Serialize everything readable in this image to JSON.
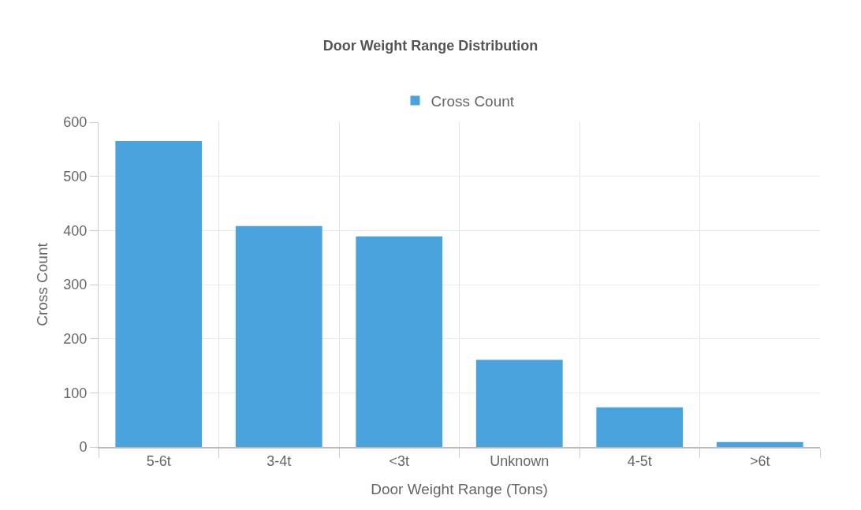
{
  "chart_data": {
    "type": "bar",
    "title": "Door Weight Range Distribution",
    "xlabel": "Door Weight Range (Tons)",
    "ylabel": "Cross Count",
    "categories": [
      "5-6t",
      "3-4t",
      "<3t",
      "Unknown",
      "4-5t",
      ">6t"
    ],
    "series": [
      {
        "name": "Cross Count",
        "color": "#4ba3de",
        "values": [
          565,
          408,
          389,
          161,
          73,
          9
        ]
      }
    ],
    "ylim": [
      0,
      600
    ],
    "yticks": [
      0,
      100,
      200,
      300,
      400,
      500,
      600
    ],
    "grid": true,
    "legend": "top"
  }
}
